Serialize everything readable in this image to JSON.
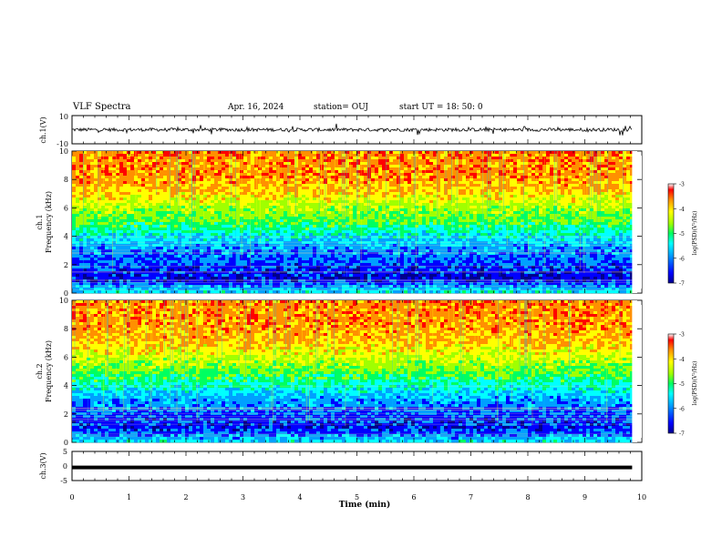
{
  "header": {
    "title": "VLF Spectra",
    "date": "Apr. 16, 2024",
    "station": "station= OUJ",
    "start": "start  UT  =   18: 50: 0"
  },
  "chart_data": [
    {
      "type": "line",
      "panel": "waveform-ch1",
      "ylabel": "ch.1(V)",
      "ylim": [
        -10,
        10
      ],
      "yticks": [
        "10",
        "-10"
      ],
      "xlim": [
        0,
        10
      ],
      "baseline": 0,
      "description_values": {
        "mean_level_V": 0,
        "typical_amplitude_V": 2
      }
    },
    {
      "type": "heatmap",
      "panel": "spectrogram-ch1",
      "ylabel": "ch.1\nFrequency (kHz)",
      "ylabel_lines": [
        "ch.1",
        "Frequency (kHz)"
      ],
      "ylim": [
        0,
        10
      ],
      "yticks": [
        "0",
        "2",
        "4",
        "6",
        "8",
        "10"
      ],
      "xlim": [
        0,
        9.83
      ],
      "colorbar": {
        "label": "log(PSD)(V²/Hz)",
        "ticks": [
          "-3",
          "-4",
          "-5",
          "-6",
          "-7"
        ],
        "range": [
          -7,
          -3
        ]
      },
      "bands_kHz_logPSD": [
        [
          0,
          -5.2
        ],
        [
          1,
          -6.4
        ],
        [
          2,
          -6.1
        ],
        [
          3,
          -5.8
        ],
        [
          4,
          -5.3
        ],
        [
          5,
          -4.6
        ],
        [
          6,
          -4.2
        ],
        [
          7,
          -3.6
        ],
        [
          8,
          -3.3
        ],
        [
          10,
          -3.2
        ]
      ]
    },
    {
      "type": "heatmap",
      "panel": "spectrogram-ch2",
      "ylabel": "ch.2\nFrequency (kHz)",
      "ylabel_lines": [
        "ch.2",
        "Frequency (kHz)"
      ],
      "ylim": [
        0,
        10
      ],
      "yticks": [
        "0",
        "2",
        "4",
        "6",
        "8",
        "10"
      ],
      "xlim": [
        0,
        9.83
      ],
      "colorbar": {
        "label": "log(PSD)(V²/Hz)",
        "ticks": [
          "-3",
          "-4",
          "-5",
          "-6",
          "-7"
        ],
        "range": [
          -7,
          -3
        ]
      },
      "bands_kHz_logPSD": [
        [
          0,
          -5.3
        ],
        [
          1,
          -6.3
        ],
        [
          2,
          -6.0
        ],
        [
          3,
          -5.7
        ],
        [
          4,
          -5.1
        ],
        [
          5,
          -4.5
        ],
        [
          6,
          -4.0
        ],
        [
          7,
          -3.5
        ],
        [
          8,
          -3.3
        ],
        [
          10,
          -3.2
        ]
      ]
    },
    {
      "type": "line",
      "panel": "waveform-ch3",
      "ylabel": "ch.3(V)",
      "ylim": [
        -5,
        5
      ],
      "yticks": [
        "5",
        "0",
        "-5"
      ],
      "xlim": [
        0,
        10
      ],
      "baseline": -0.5,
      "xlabel": "Time (min)",
      "xticks": [
        "0",
        "1",
        "2",
        "3",
        "4",
        "5",
        "6",
        "7",
        "8",
        "9",
        "10"
      ]
    }
  ],
  "colors": {
    "colormap": [
      "#00008c",
      "#0000ff",
      "#00a0ff",
      "#00ffff",
      "#00ff60",
      "#a0ff00",
      "#ffff00",
      "#ff9000",
      "#ff0000",
      "#ffffff"
    ]
  }
}
